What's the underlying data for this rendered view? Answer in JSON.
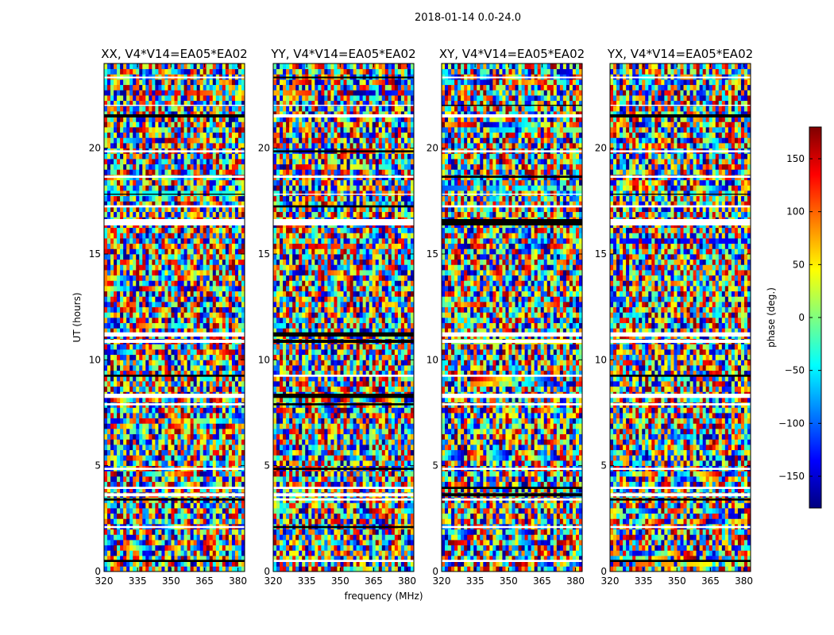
{
  "figure": {
    "suptitle": "2018-01-14 0.0-24.0"
  },
  "chart_data": {
    "type": "heatmap",
    "xlabel": "frequency (MHz)",
    "ylabel": "UT (hours)",
    "xlim": [
      320,
      383
    ],
    "ylim": [
      0,
      24
    ],
    "xticks": [
      320,
      335,
      350,
      365,
      380
    ],
    "yticks": [
      0,
      5,
      10,
      15,
      20
    ],
    "colormap": "jet",
    "colorbar": {
      "label": "phase (deg.)",
      "range": [
        -180,
        180
      ],
      "ticks": [
        -150,
        -100,
        -50,
        0,
        50,
        100,
        150
      ],
      "tick_labels": [
        "−150",
        "−100",
        "−50",
        "0",
        "50",
        "100",
        "150"
      ],
      "colors": [
        "#00007f",
        "#0000ff",
        "#007fff",
        "#00ffff",
        "#7fff7f",
        "#ffff00",
        "#ff7f00",
        "#ff0000",
        "#7f0000"
      ]
    },
    "panels": [
      {
        "title": "XX, V4*V14=EA05*EA02",
        "quantity": "phase",
        "polarization": "XX"
      },
      {
        "title": "YY, V4*V14=EA05*EA02",
        "quantity": "phase",
        "polarization": "YY"
      },
      {
        "title": "XY, V4*V14=EA05*EA02",
        "quantity": "phase",
        "polarization": "XY"
      },
      {
        "title": "YX, V4*V14=EA05*EA02",
        "quantity": "phase",
        "polarization": "YX"
      }
    ],
    "flagged_bands_hours": [
      [
        23.3,
        23.38
      ],
      [
        22.0,
        22.05
      ],
      [
        21.45,
        21.6
      ],
      [
        19.8,
        19.9
      ],
      [
        18.6,
        18.7
      ],
      [
        17.8,
        17.85
      ],
      [
        17.2,
        17.3
      ],
      [
        16.35,
        16.65
      ],
      [
        11.1,
        11.3
      ],
      [
        10.8,
        10.95
      ],
      [
        9.2,
        9.3
      ],
      [
        8.2,
        8.4
      ],
      [
        7.85,
        7.95
      ],
      [
        4.8,
        4.9
      ],
      [
        3.9,
        4.0
      ],
      [
        3.55,
        3.7
      ],
      [
        3.35,
        3.45
      ],
      [
        2.05,
        2.15
      ],
      [
        0.45,
        0.55
      ]
    ]
  }
}
